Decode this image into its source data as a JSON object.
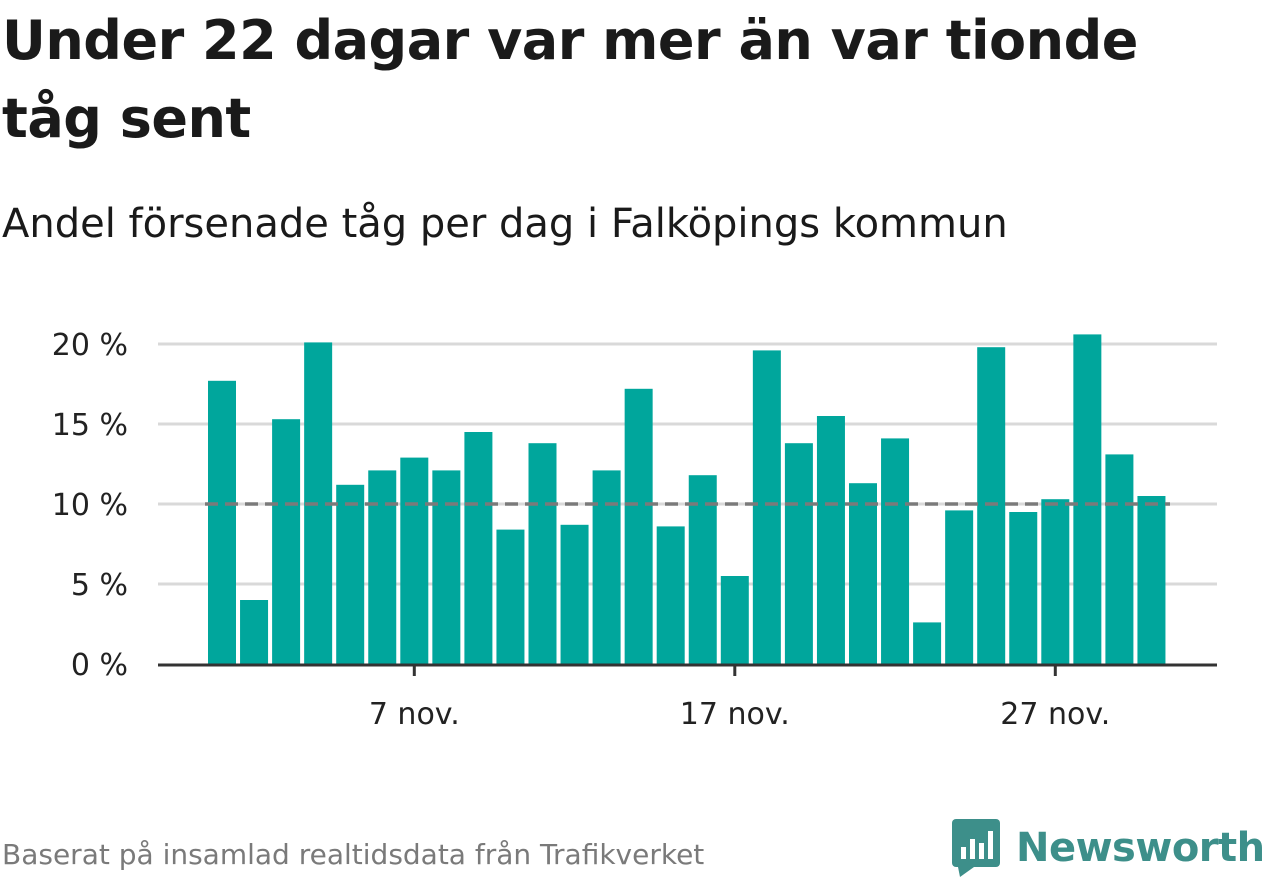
{
  "title": "Under 22 dagar var mer än var tionde tåg sent",
  "subtitle": "Andel försenade tåg per dag i Falköpings kommun",
  "footer": {
    "source_note": "Baserat på insamlad realtidsdata från Trafikverket",
    "brand": "Newsworthy"
  },
  "colors": {
    "bar": "#00a69c",
    "reference_line": "#7a7a7a",
    "grid": "#d9d9d9",
    "axis": "#333333",
    "brand": "#3d8f8a"
  },
  "chart_data": {
    "type": "bar",
    "x_start_day": 1,
    "x_month_label": "nov.",
    "values": [
      17.7,
      4.0,
      15.3,
      20.1,
      11.2,
      12.1,
      12.9,
      12.1,
      14.5,
      8.4,
      13.8,
      8.7,
      12.1,
      17.2,
      8.6,
      11.8,
      5.5,
      19.6,
      13.8,
      15.5,
      11.3,
      14.1,
      2.6,
      9.6,
      19.8,
      9.5,
      10.3,
      20.6,
      13.1,
      10.5
    ],
    "reference_line": 10,
    "ylim": [
      0,
      20
    ],
    "yticks": [
      {
        "value": 0,
        "label": "0 %"
      },
      {
        "value": 5,
        "label": "5 %"
      },
      {
        "value": 10,
        "label": "10 %"
      },
      {
        "value": 15,
        "label": "15 %"
      },
      {
        "value": 20,
        "label": "20 %"
      }
    ],
    "xticks": [
      {
        "day": 7,
        "label": "7 nov."
      },
      {
        "day": 17,
        "label": "17 nov."
      },
      {
        "day": 27,
        "label": "27 nov."
      }
    ],
    "grid": true,
    "xlabel": "",
    "ylabel": ""
  }
}
